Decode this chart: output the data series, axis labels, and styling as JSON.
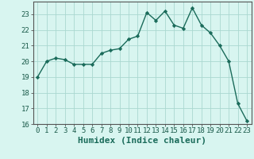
{
  "x": [
    0,
    1,
    2,
    3,
    4,
    5,
    6,
    7,
    8,
    9,
    10,
    11,
    12,
    13,
    14,
    15,
    16,
    17,
    18,
    19,
    20,
    21,
    22,
    23
  ],
  "y": [
    19.0,
    20.0,
    20.2,
    20.1,
    19.8,
    19.8,
    19.8,
    20.5,
    20.7,
    20.8,
    21.4,
    21.6,
    23.1,
    22.6,
    23.2,
    22.3,
    22.1,
    23.4,
    22.3,
    21.8,
    21.0,
    20.0,
    17.3,
    16.2
  ],
  "line_color": "#1a6b5a",
  "marker_color": "#1a6b5a",
  "bg_color": "#d8f5f0",
  "grid_color": "#aad8d0",
  "xlabel": "Humidex (Indice chaleur)",
  "ylim": [
    16,
    23.8
  ],
  "xlim": [
    -0.5,
    23.5
  ],
  "yticks": [
    16,
    17,
    18,
    19,
    20,
    21,
    22,
    23
  ],
  "xticks": [
    0,
    1,
    2,
    3,
    4,
    5,
    6,
    7,
    8,
    9,
    10,
    11,
    12,
    13,
    14,
    15,
    16,
    17,
    18,
    19,
    20,
    21,
    22,
    23
  ],
  "tick_fontsize": 6.5,
  "label_fontsize": 8
}
